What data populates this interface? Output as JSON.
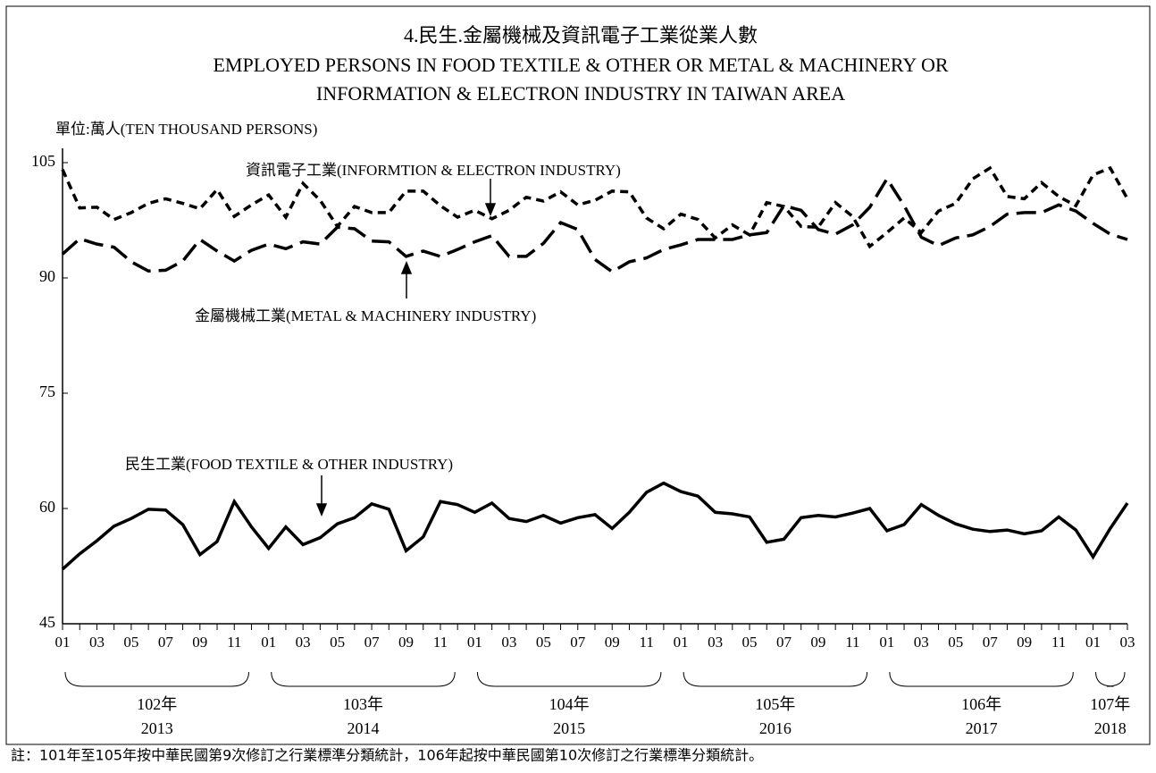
{
  "chart_data": {
    "type": "line",
    "title": [
      "4.民生.金屬機械及資訊電子工業從業人數",
      "EMPLOYED PERSONS IN FOOD TEXTILE & OTHER OR METAL & MACHINERY OR",
      "INFORMATION & ELECTRON INDUSTRY IN TAIWAN AREA"
    ],
    "unit": "單位:萬人(TEN THOUSAND PERSONS)",
    "note": "註：101年至105年按中華民國第9次修訂之行業標準分類統計，106年起按中華民國第10次修訂之行業標準分類統計。",
    "categories": [
      "01",
      null,
      "03",
      null,
      "05",
      null,
      "07",
      null,
      "09",
      null,
      "11",
      null,
      "01",
      null,
      "03",
      null,
      "05",
      null,
      "07",
      null,
      "09",
      null,
      "11",
      null,
      "01",
      null,
      "03",
      null,
      "05",
      null,
      "07",
      null,
      "09",
      null,
      "11",
      null,
      "01",
      null,
      "03",
      null,
      "05",
      null,
      "07",
      null,
      "09",
      null,
      "11",
      null,
      "01",
      null,
      "03",
      null,
      "05",
      null,
      "07",
      null,
      "09",
      null,
      "11",
      null,
      "01",
      null,
      "03"
    ],
    "groups": [
      {
        "label": "102年",
        "year": "2013"
      },
      {
        "label": "103年",
        "year": "2014"
      },
      {
        "label": "104年",
        "year": "2015"
      },
      {
        "label": "105年",
        "year": "2016"
      },
      {
        "label": "106年",
        "year": "2017"
      },
      {
        "label": "107年",
        "year": "2018"
      }
    ],
    "ylim": [
      45,
      105
    ],
    "yticks": [
      45,
      60,
      75,
      90,
      105
    ],
    "grid": false,
    "series": [
      {
        "name": "資訊電子工業(INFORMTION & ELECTRON INDUSTRY)",
        "color": "#000000",
        "dash": "short",
        "values": [
          104.1,
          99.1,
          99.2,
          97.6,
          98.5,
          99.7,
          100.3,
          99.7,
          99.0,
          101.5,
          98.0,
          99.5,
          100.8,
          97.9,
          102.3,
          100.1,
          96.7,
          99.3,
          98.5,
          98.5,
          101.3,
          101.3,
          99.4,
          97.9,
          98.8,
          97.7,
          98.8,
          100.5,
          100.0,
          101.2,
          99.5,
          100.1,
          101.3,
          101.2,
          97.8,
          96.4,
          98.3,
          97.6,
          95.2,
          96.9,
          95.6,
          99.8,
          99.3,
          96.7,
          96.6,
          99.8,
          98.0,
          94.1,
          95.9,
          97.8,
          95.9,
          98.7,
          99.7,
          102.9,
          104.3,
          100.6,
          100.3,
          102.4,
          100.6,
          99.4,
          103.4,
          104.3,
          100.3
        ]
      },
      {
        "name": "金屬機械工業(METAL & MACHINERY INDUSTRY)",
        "color": "#000000",
        "dash": "long",
        "values": [
          93.1,
          95.1,
          94.4,
          94.0,
          92.1,
          90.9,
          91.0,
          92.2,
          95.0,
          93.5,
          92.2,
          93.6,
          94.4,
          93.8,
          94.7,
          94.4,
          96.6,
          96.4,
          94.8,
          94.7,
          92.8,
          93.5,
          92.8,
          93.7,
          94.7,
          95.5,
          92.8,
          92.8,
          94.5,
          97.2,
          96.3,
          92.4,
          90.8,
          92.1,
          92.6,
          93.7,
          94.3,
          95.0,
          95.0,
          95.0,
          95.6,
          95.9,
          99.4,
          98.8,
          96.3,
          95.7,
          96.9,
          99.2,
          102.9,
          99.4,
          95.3,
          94.2,
          95.2,
          95.6,
          96.7,
          98.3,
          98.5,
          98.5,
          99.5,
          98.7,
          97.1,
          95.7,
          95.0
        ]
      },
      {
        "name": "民生工業(FOOD TEXTILE & OTHER INDUSTRY)",
        "color": "#000000",
        "dash": "solid",
        "values": [
          52.1,
          54.1,
          55.8,
          57.7,
          58.7,
          59.9,
          59.8,
          57.9,
          54.0,
          55.7,
          60.9,
          57.6,
          54.8,
          57.6,
          55.3,
          56.2,
          58.0,
          58.8,
          60.6,
          59.9,
          54.5,
          56.3,
          60.9,
          60.5,
          59.5,
          60.7,
          58.7,
          58.3,
          59.1,
          58.1,
          58.8,
          59.2,
          57.4,
          59.5,
          62.1,
          63.3,
          62.2,
          61.6,
          59.5,
          59.3,
          58.9,
          55.6,
          56.0,
          58.8,
          59.1,
          58.9,
          59.4,
          60.0,
          57.1,
          57.9,
          60.5,
          59.1,
          58.0,
          57.3,
          57.0,
          57.2,
          56.7,
          57.1,
          58.9,
          57.2,
          53.7,
          57.4,
          60.7
        ]
      }
    ]
  }
}
